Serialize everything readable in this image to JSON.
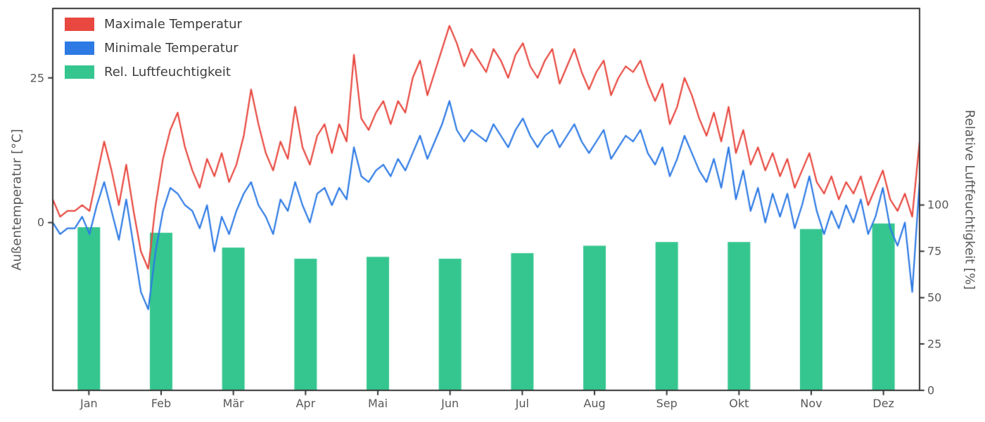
{
  "figure": {
    "background": "#ffffff",
    "frame_color": "#333333",
    "tick_text_color": "#595959"
  },
  "chart_data": {
    "type": "line",
    "title": "",
    "x_axis": {
      "tick_labels": [
        "Jan",
        "Feb",
        "Mär",
        "Apr",
        "Mai",
        "Jun",
        "Jul",
        "Aug",
        "Sep",
        "Okt",
        "Nov",
        "Dez"
      ]
    },
    "y_left": {
      "label": "Außentemperatur [°C]",
      "ticks": [
        0,
        25
      ],
      "range": [
        -29,
        37
      ]
    },
    "y_right": {
      "label": "Relative Luftfeuchtigkeit [%]",
      "ticks": [
        0,
        25,
        50,
        75,
        100
      ],
      "range": [
        0,
        206
      ]
    },
    "legend": [
      {
        "label": "Maximale Temperatur",
        "color": "#e8483f"
      },
      {
        "label": "Minimale Temperatur",
        "color": "#2d7ae5"
      },
      {
        "label": "Rel. Luftfeuchtigkeit",
        "color": "#35c68f"
      }
    ],
    "series": [
      {
        "name": "Maximale Temperatur",
        "type": "line",
        "axis": "left",
        "color": "#e8483f",
        "values": [
          4,
          1,
          2,
          2,
          3,
          2,
          8,
          14,
          9,
          3,
          10,
          2,
          -5,
          -8,
          3,
          11,
          16,
          19,
          13,
          9,
          6,
          11,
          8,
          12,
          7,
          10,
          15,
          23,
          17,
          12,
          9,
          14,
          11,
          20,
          13,
          10,
          15,
          17,
          12,
          17,
          14,
          29,
          18,
          16,
          19,
          21,
          17,
          21,
          19,
          25,
          28,
          22,
          26,
          30,
          34,
          31,
          27,
          30,
          28,
          26,
          30,
          28,
          25,
          29,
          31,
          27,
          25,
          28,
          30,
          24,
          27,
          30,
          26,
          23,
          26,
          28,
          22,
          25,
          27,
          26,
          28,
          24,
          21,
          24,
          17,
          20,
          25,
          22,
          18,
          15,
          19,
          14,
          20,
          12,
          16,
          10,
          13,
          9,
          12,
          8,
          11,
          6,
          9,
          12,
          7,
          5,
          8,
          4,
          7,
          5,
          8,
          3,
          6,
          9,
          4,
          2,
          5,
          1,
          14
        ]
      },
      {
        "name": "Minimale Temperatur",
        "type": "line",
        "axis": "left",
        "color": "#2d7ae5",
        "values": [
          0,
          -2,
          -1,
          -1,
          1,
          -2,
          3,
          7,
          2,
          -3,
          4,
          -4,
          -12,
          -15,
          -5,
          2,
          6,
          5,
          3,
          2,
          -1,
          3,
          -5,
          1,
          -2,
          2,
          5,
          7,
          3,
          1,
          -2,
          4,
          2,
          7,
          3,
          0,
          5,
          6,
          3,
          6,
          4,
          13,
          8,
          7,
          9,
          10,
          8,
          11,
          9,
          12,
          15,
          11,
          14,
          17,
          21,
          16,
          14,
          16,
          15,
          14,
          17,
          15,
          13,
          16,
          18,
          15,
          13,
          15,
          16,
          13,
          15,
          17,
          14,
          12,
          14,
          16,
          11,
          13,
          15,
          14,
          16,
          12,
          10,
          13,
          8,
          11,
          15,
          12,
          9,
          7,
          11,
          6,
          13,
          4,
          9,
          2,
          6,
          0,
          5,
          1,
          5,
          -1,
          3,
          8,
          2,
          -2,
          2,
          -1,
          3,
          0,
          4,
          -2,
          1,
          6,
          -1,
          -4,
          0,
          -12,
          7
        ]
      },
      {
        "name": "Rel. Luftfeuchtigkeit",
        "type": "bar",
        "axis": "right",
        "color": "#35c68f",
        "categories": [
          "Jan",
          "Feb",
          "Mär",
          "Apr",
          "Mai",
          "Jun",
          "Jul",
          "Aug",
          "Sep",
          "Okt",
          "Nov",
          "Dez"
        ],
        "values": [
          88,
          85,
          77,
          71,
          72,
          71,
          74,
          78,
          80,
          80,
          87,
          90
        ]
      }
    ]
  }
}
